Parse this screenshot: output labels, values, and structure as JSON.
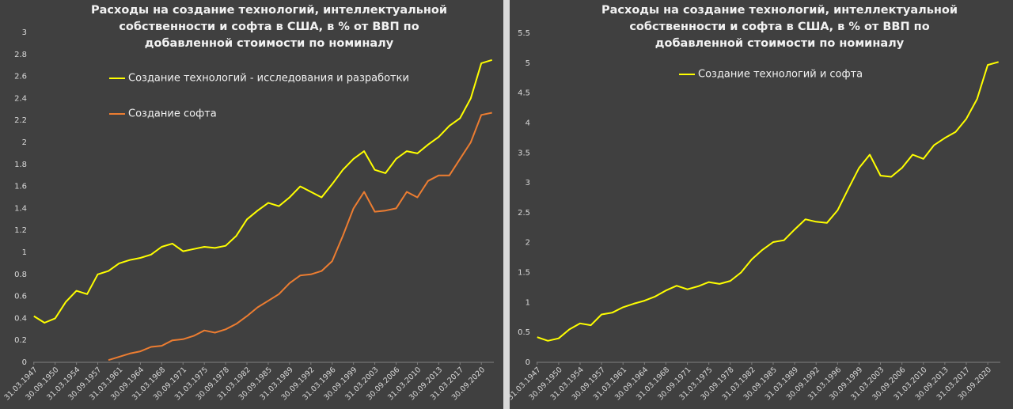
{
  "chart_data": [
    {
      "type": "line",
      "title": "Расходы на создание технологий, интеллектуальной собственности и софта в США, в % от ВВП по добавленной стоимости по номиналу",
      "x": [
        "31.03.1947",
        "31.12.1948",
        "30.09.1950",
        "30.06.1952",
        "31.03.1954",
        "31.12.1955",
        "30.09.1957",
        "30.06.1959",
        "31.03.1961",
        "31.12.1962",
        "30.09.1964",
        "30.06.1966",
        "31.03.1968",
        "31.12.1969",
        "30.09.1971",
        "30.06.1973",
        "31.03.1975",
        "31.12.1976",
        "30.09.1978",
        "30.06.1980",
        "31.03.1982",
        "31.12.1983",
        "30.09.1985",
        "30.06.1987",
        "31.03.1989",
        "31.12.1990",
        "30.09.1992",
        "30.06.1994",
        "31.03.1996",
        "31.12.1997",
        "30.09.1999",
        "30.06.2001",
        "31.03.2003",
        "31.12.2004",
        "30.09.2006",
        "30.06.2008",
        "31.03.2010",
        "31.12.2011",
        "30.09.2013",
        "30.06.2015",
        "31.03.2017",
        "31.12.2018",
        "30.09.2020",
        "30.06.2022"
      ],
      "series": [
        {
          "name": "Создание технологий - исследования и разработки",
          "color": "#ffff00",
          "values": [
            0.42,
            0.36,
            0.4,
            0.55,
            0.65,
            0.62,
            0.8,
            0.83,
            0.9,
            0.93,
            0.95,
            0.98,
            1.05,
            1.08,
            1.01,
            1.03,
            1.05,
            1.04,
            1.06,
            1.15,
            1.3,
            1.38,
            1.45,
            1.42,
            1.5,
            1.6,
            1.55,
            1.5,
            1.62,
            1.75,
            1.85,
            1.92,
            1.75,
            1.72,
            1.85,
            1.92,
            1.9,
            1.98,
            2.05,
            2.15,
            2.22,
            2.4,
            2.72,
            2.75
          ]
        },
        {
          "name": "Создание софта",
          "color": "#ed7d31",
          "values": [
            null,
            null,
            null,
            null,
            null,
            null,
            null,
            0.02,
            0.05,
            0.08,
            0.1,
            0.14,
            0.15,
            0.2,
            0.21,
            0.24,
            0.29,
            0.27,
            0.3,
            0.35,
            0.42,
            0.5,
            0.56,
            0.62,
            0.72,
            0.79,
            0.8,
            0.83,
            0.92,
            1.15,
            1.4,
            1.55,
            1.37,
            1.38,
            1.4,
            1.55,
            1.5,
            1.65,
            1.7,
            1.7,
            1.85,
            2.0,
            2.25,
            2.27
          ]
        }
      ],
      "ylim": [
        0,
        3
      ],
      "yticks": [
        0,
        0.2,
        0.4,
        0.6,
        0.8,
        1,
        1.2,
        1.4,
        1.6,
        1.8,
        2,
        2.2,
        2.4,
        2.6,
        2.8,
        3
      ],
      "xticks": [
        "31.03.1947",
        "30.09.1950",
        "31.03.1954",
        "30.09.1957",
        "31.03.1961",
        "30.09.1964",
        "31.03.1968",
        "30.09.1971",
        "31.03.1975",
        "30.09.1978",
        "31.03.1982",
        "30.09.1985",
        "31.03.1989",
        "30.09.1992",
        "31.03.1996",
        "30.09.1999",
        "31.03.2003",
        "30.09.2006",
        "31.03.2010",
        "30.09.2013",
        "31.03.2017",
        "30.09.2020"
      ],
      "grid": false
    },
    {
      "type": "line",
      "title": "Расходы на создание технологий, интеллектуальной собственности и софта в США, в % от ВВП по добавленной стоимости по номиналу",
      "x": [
        "31.03.1947",
        "31.12.1948",
        "30.09.1950",
        "30.06.1952",
        "31.03.1954",
        "31.12.1955",
        "30.09.1957",
        "30.06.1959",
        "31.03.1961",
        "31.12.1962",
        "30.09.1964",
        "30.06.1966",
        "31.03.1968",
        "31.12.1969",
        "30.09.1971",
        "30.06.1973",
        "31.03.1975",
        "31.12.1976",
        "30.09.1978",
        "30.06.1980",
        "31.03.1982",
        "31.12.1983",
        "30.09.1985",
        "30.06.1987",
        "31.03.1989",
        "31.12.1990",
        "30.09.1992",
        "30.06.1994",
        "31.03.1996",
        "31.12.1997",
        "30.09.1999",
        "30.06.2001",
        "31.03.2003",
        "31.12.2004",
        "30.09.2006",
        "30.06.2008",
        "31.03.2010",
        "31.12.2011",
        "30.09.2013",
        "30.06.2015",
        "31.03.2017",
        "31.12.2018",
        "30.09.2020",
        "30.06.2022"
      ],
      "series": [
        {
          "name": "Создание технологий и софта",
          "color": "#ffff00",
          "values": [
            0.42,
            0.36,
            0.4,
            0.55,
            0.65,
            0.62,
            0.8,
            0.83,
            0.92,
            0.98,
            1.03,
            1.1,
            1.2,
            1.28,
            1.22,
            1.27,
            1.34,
            1.31,
            1.36,
            1.5,
            1.72,
            1.88,
            2.01,
            2.04,
            2.22,
            2.39,
            2.35,
            2.33,
            2.54,
            2.9,
            3.25,
            3.47,
            3.12,
            3.1,
            3.25,
            3.47,
            3.4,
            3.63,
            3.75,
            3.85,
            4.07,
            4.4,
            4.97,
            5.02
          ]
        }
      ],
      "ylim": [
        0,
        5.5
      ],
      "yticks": [
        0,
        0.5,
        1,
        1.5,
        2,
        2.5,
        3,
        3.5,
        4,
        4.5,
        5,
        5.5
      ],
      "xticks": [
        "31.03.1947",
        "30.09.1950",
        "31.03.1954",
        "30.09.1957",
        "31.03.1961",
        "30.09.1964",
        "31.03.1968",
        "30.09.1971",
        "31.03.1975",
        "30.09.1978",
        "31.03.1982",
        "30.09.1985",
        "31.03.1989",
        "30.09.1992",
        "31.03.1996",
        "30.09.1999",
        "31.03.2003",
        "30.09.2006",
        "31.03.2010",
        "30.09.2013",
        "31.03.2017",
        "30.09.2020"
      ],
      "grid": false
    }
  ]
}
